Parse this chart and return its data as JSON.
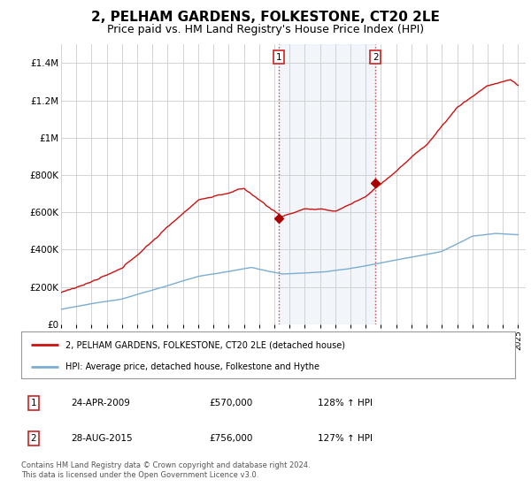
{
  "title": "2, PELHAM GARDENS, FOLKESTONE, CT20 2LE",
  "subtitle": "Price paid vs. HM Land Registry's House Price Index (HPI)",
  "title_fontsize": 11,
  "subtitle_fontsize": 9,
  "hpi_color": "#7aadd4",
  "price_color": "#cc1111",
  "marker_color": "#aa0000",
  "background_color": "#ffffff",
  "grid_color": "#cccccc",
  "highlight_bg": "#ccdff0",
  "transaction1": {
    "date": "24-APR-2009",
    "price": 570000,
    "hpi_pct": "128%",
    "label": "1",
    "year": 2009.29
  },
  "transaction2": {
    "date": "28-AUG-2015",
    "price": 756000,
    "hpi_pct": "127%",
    "label": "2",
    "year": 2015.63
  },
  "legend_line1": "2, PELHAM GARDENS, FOLKESTONE, CT20 2LE (detached house)",
  "legend_line2": "HPI: Average price, detached house, Folkestone and Hythe",
  "footer1": "Contains HM Land Registry data © Crown copyright and database right 2024.",
  "footer2": "This data is licensed under the Open Government Licence v3.0.",
  "ylim": [
    0,
    1500000
  ],
  "yticks": [
    0,
    200000,
    400000,
    600000,
    800000,
    1000000,
    1200000,
    1400000
  ],
  "ytick_labels": [
    "£0",
    "£200K",
    "£400K",
    "£600K",
    "£800K",
    "£1M",
    "£1.2M",
    "£1.4M"
  ],
  "xlim_start": 1995,
  "xlim_end": 2025.5
}
